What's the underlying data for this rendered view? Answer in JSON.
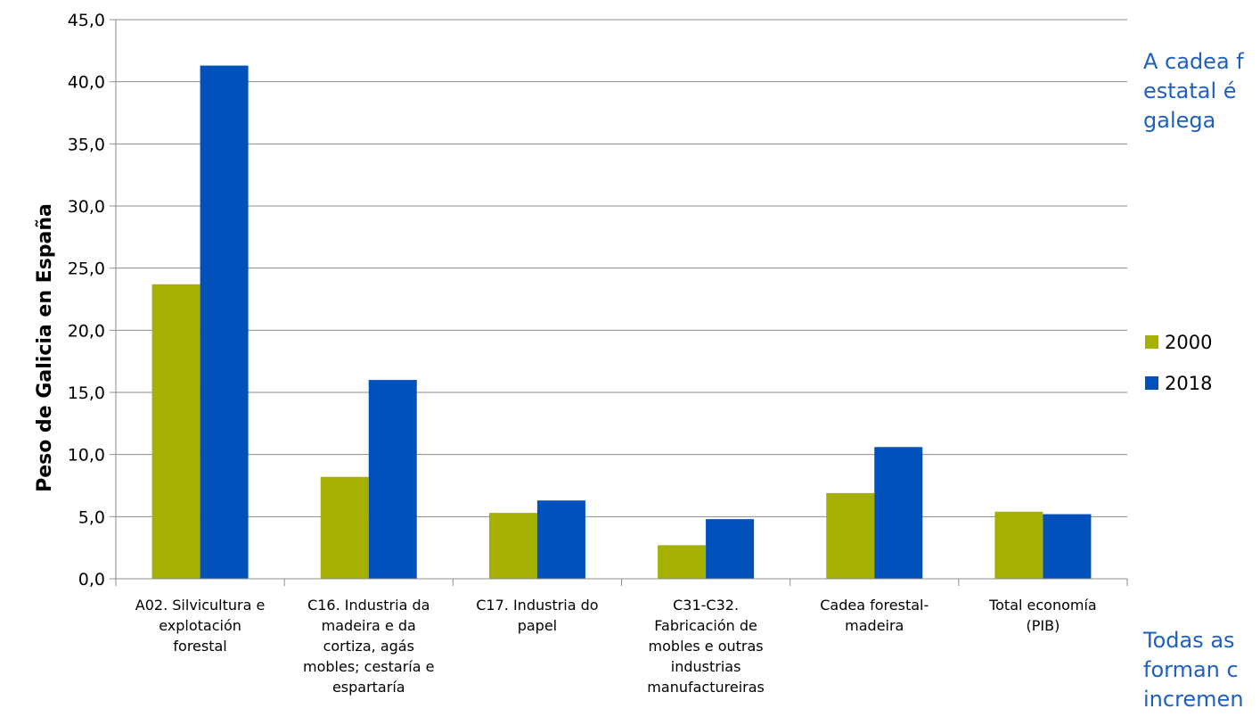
{
  "chart_data": {
    "type": "bar",
    "title": "",
    "xlabel": "",
    "ylabel": "Peso de Galicia en España",
    "ylim": [
      0,
      45
    ],
    "yticks": [
      "0,0",
      "5,0",
      "10,0",
      "15,0",
      "20,0",
      "25,0",
      "30,0",
      "35,0",
      "40,0",
      "45,0"
    ],
    "grid": true,
    "legend_position": "right",
    "categories": [
      [
        "A02. Silvicultura e",
        "explotación",
        "forestal"
      ],
      [
        "C16. Industria da",
        "madeira e da",
        "cortiza, agás",
        "mobles; cestaría e",
        "espartaría"
      ],
      [
        "C17. Industria do",
        "papel"
      ],
      [
        "C31-C32.",
        "Fabricación de",
        "mobles e outras",
        "industrias",
        "manufactureiras"
      ],
      [
        "Cadea forestal-",
        "madeira"
      ],
      [
        "Total economía",
        "(PIB)"
      ]
    ],
    "series": [
      {
        "name": "2000",
        "color": "#a5b000",
        "values": [
          23.7,
          8.2,
          5.3,
          2.7,
          6.9,
          5.4
        ]
      },
      {
        "name": "2018",
        "color": "#0151bc",
        "values": [
          41.3,
          16.0,
          6.3,
          4.8,
          10.6,
          5.2
        ]
      }
    ]
  },
  "notes": {
    "top": [
      "A cadea f",
      "estatal é",
      "galega"
    ],
    "bottom": [
      "Todas as",
      "forman c",
      "incremen"
    ]
  }
}
